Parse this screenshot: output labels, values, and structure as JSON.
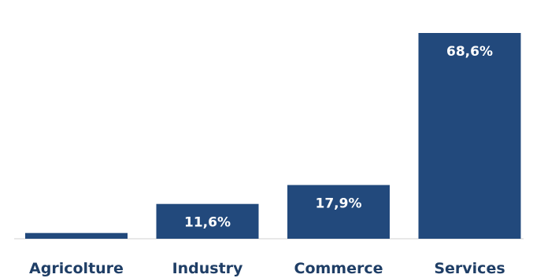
{
  "chart_data": {
    "type": "bar",
    "title": "",
    "xlabel": "",
    "ylabel": "",
    "categories": [
      "Agricolture",
      "Industry",
      "Commerce",
      "Services"
    ],
    "values": [
      1.9,
      11.6,
      17.9,
      68.6
    ],
    "value_labels": [
      "",
      "11,6%",
      "17,9%",
      "68,6%"
    ],
    "unit": "%",
    "ylim": [
      0,
      68.6
    ],
    "grid": false,
    "legend": "none",
    "bar_color": "#22497c",
    "label_color": "#1f3e66"
  }
}
